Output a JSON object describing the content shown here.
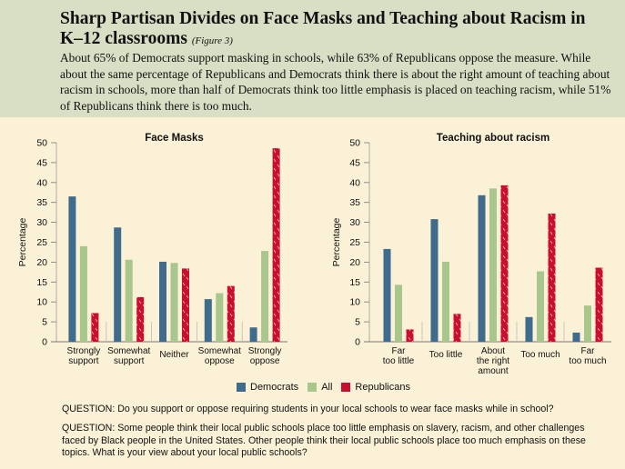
{
  "header": {
    "title": "Sharp Partisan Divides on Face Masks and Teaching about Racism in K–12 classrooms",
    "figure_ref": "(Figure 3)",
    "description": "About 65% of Democrats support masking in schools, while 63% of Republicans oppose the measure. While about the same percentage of Republicans and Democrats think there is about the right amount of teaching about racism in schools, more than half of Democrats think too little emphasis is placed on teaching racism, while 51% of Republicans think there is too much."
  },
  "colors": {
    "democrats": "#3f6b8c",
    "all": "#a9c68c",
    "republicans": "#c8102e",
    "header_bg": "#d9dfc5",
    "page_bg": "#fbf1d6"
  },
  "legend": [
    {
      "name": "Democrats",
      "color": "#3f6b8c"
    },
    {
      "name": "All",
      "color": "#a9c68c"
    },
    {
      "name": "Republicans",
      "color": "#c8102e"
    }
  ],
  "chart_data": [
    {
      "type": "bar",
      "title": "Face Masks",
      "ylabel": "Percentage",
      "ylim": [
        0,
        50
      ],
      "yticks": [
        "0",
        "5",
        "10",
        "15",
        "20",
        "25",
        "30",
        "35",
        "40",
        "45",
        "50"
      ],
      "categories": [
        [
          "Strongly",
          "support"
        ],
        [
          "Somewhat",
          "support"
        ],
        [
          "Neither"
        ],
        [
          "Somewhat",
          "oppose"
        ],
        [
          "Strongly",
          "oppose"
        ]
      ],
      "series": [
        {
          "name": "Democrats",
          "values": [
            36.5,
            28.7,
            20.1,
            10.7,
            3.6
          ]
        },
        {
          "name": "All",
          "values": [
            24.0,
            20.6,
            19.8,
            12.2,
            22.8
          ]
        },
        {
          "name": "Republicans",
          "values": [
            7.2,
            11.2,
            18.4,
            14.0,
            48.6
          ]
        }
      ]
    },
    {
      "type": "bar",
      "title": "Teaching about racism",
      "ylabel": "Percentage",
      "ylim": [
        0,
        50
      ],
      "yticks": [
        "0",
        "5",
        "10",
        "15",
        "20",
        "25",
        "30",
        "35",
        "40",
        "45",
        "50"
      ],
      "categories": [
        [
          "Far",
          "too little"
        ],
        [
          "Too little"
        ],
        [
          "About",
          "the right",
          "amount"
        ],
        [
          "Too much"
        ],
        [
          "Far",
          "too much"
        ]
      ],
      "series": [
        {
          "name": "Democrats",
          "values": [
            23.3,
            30.8,
            36.8,
            6.2,
            2.3
          ]
        },
        {
          "name": "All",
          "values": [
            14.3,
            20.1,
            38.5,
            17.7,
            9.1
          ]
        },
        {
          "name": "Republicans",
          "values": [
            3.1,
            7.0,
            39.3,
            32.2,
            18.6
          ]
        }
      ]
    }
  ],
  "questions": {
    "q1": "QUESTION: Do you support or oppose requiring students in your local schools to wear face masks while in school?",
    "q2": "QUESTION: Some people think their local public schools place too little emphasis on slavery, racism, and other challenges faced by Black people in the United States. Other people think their local public schools place too much emphasis on these topics. What is your view about your local public schools?"
  }
}
